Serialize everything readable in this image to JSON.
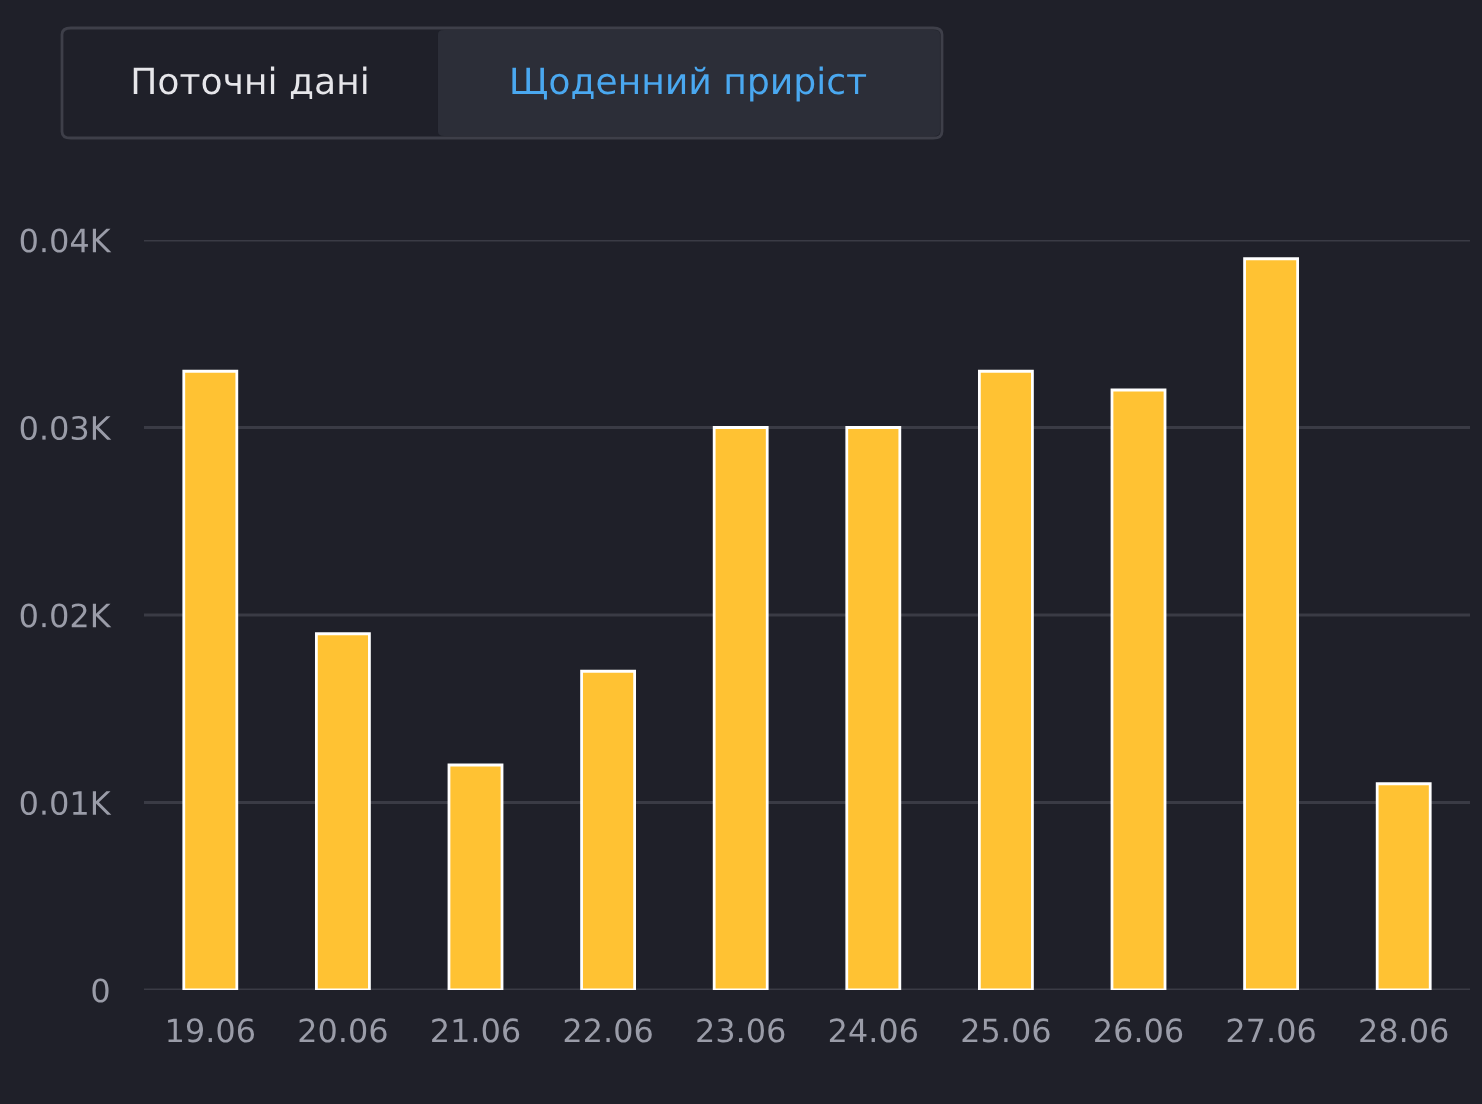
{
  "chart_data": {
    "type": "bar",
    "categories": [
      "19.06",
      "20.06",
      "21.06",
      "22.06",
      "23.06",
      "24.06",
      "25.06",
      "26.06",
      "27.06",
      "28.06"
    ],
    "values": [
      0.033,
      0.019,
      0.012,
      0.017,
      0.03,
      0.03,
      0.033,
      0.032,
      0.039,
      0.011
    ],
    "color": "#ffc233",
    "ylim": [
      0,
      0.04
    ],
    "yticks": [
      0,
      {
        "value": 0.01,
        "label": "0.01K"
      },
      {
        "value": 0.02,
        "label": "0.02K"
      },
      {
        "value": 0.03,
        "label": "0.03K"
      },
      {
        "value": 0.04,
        "label": "0.04K"
      }
    ],
    "grid": "y",
    "annotations": [
      "Поточні дані",
      "Щоденний приріст"
    ]
  }
}
